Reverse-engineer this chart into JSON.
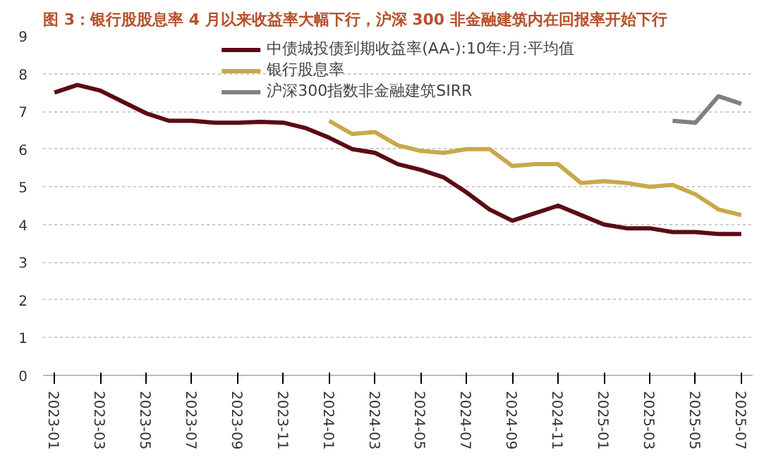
{
  "chart_data": {
    "type": "line",
    "title": "图 3：银行股股息率 4 月以来收益率大幅下行，沪深 300 非金融建筑内在回报率开始下行",
    "categories": [
      "2023-01",
      null,
      "2023-03",
      null,
      "2023-05",
      null,
      "2023-07",
      null,
      "2023-09",
      null,
      "2023-11",
      null,
      "2024-01",
      null,
      "2024-03",
      null,
      "2024-05",
      null,
      "2024-07",
      null,
      "2024-09",
      null,
      "2024-11",
      null,
      "2025-01",
      null,
      "2025-03",
      null,
      "2025-05",
      null,
      "2025-07"
    ],
    "series": [
      {
        "name": "中债城投债到期收益率(AA-):10年:月:平均值",
        "color": "#5c0a14",
        "values": [
          7.5,
          7.7,
          7.55,
          7.25,
          6.95,
          6.75,
          6.75,
          6.7,
          6.7,
          6.72,
          6.7,
          6.55,
          6.3,
          6.0,
          5.9,
          5.6,
          5.45,
          5.25,
          4.85,
          4.4,
          4.1,
          4.3,
          4.5,
          4.25,
          4.0,
          3.9,
          3.9,
          3.8,
          3.8,
          3.75,
          3.75
        ]
      },
      {
        "name": "银行股息率",
        "color": "#c9a84c",
        "values": [
          null,
          null,
          null,
          null,
          null,
          null,
          null,
          null,
          null,
          null,
          null,
          null,
          6.75,
          6.4,
          6.45,
          6.1,
          5.95,
          5.9,
          6.0,
          6.0,
          5.55,
          5.6,
          5.6,
          5.1,
          5.15,
          5.1,
          5.0,
          5.05,
          4.8,
          4.4,
          4.25
        ]
      },
      {
        "name": "沪深300指数非金融建筑SIRR",
        "color": "#808080",
        "values": [
          null,
          null,
          null,
          null,
          null,
          null,
          null,
          null,
          null,
          null,
          null,
          null,
          null,
          null,
          null,
          null,
          null,
          null,
          null,
          null,
          null,
          null,
          null,
          null,
          null,
          null,
          null,
          6.75,
          6.7,
          7.4,
          7.2
        ]
      }
    ],
    "ylim": [
      0,
      9
    ],
    "yticks": [
      0,
      1,
      2,
      3,
      4,
      5,
      6,
      7,
      8,
      9
    ],
    "grid": "y",
    "legend": "top",
    "line_style": "solid"
  }
}
